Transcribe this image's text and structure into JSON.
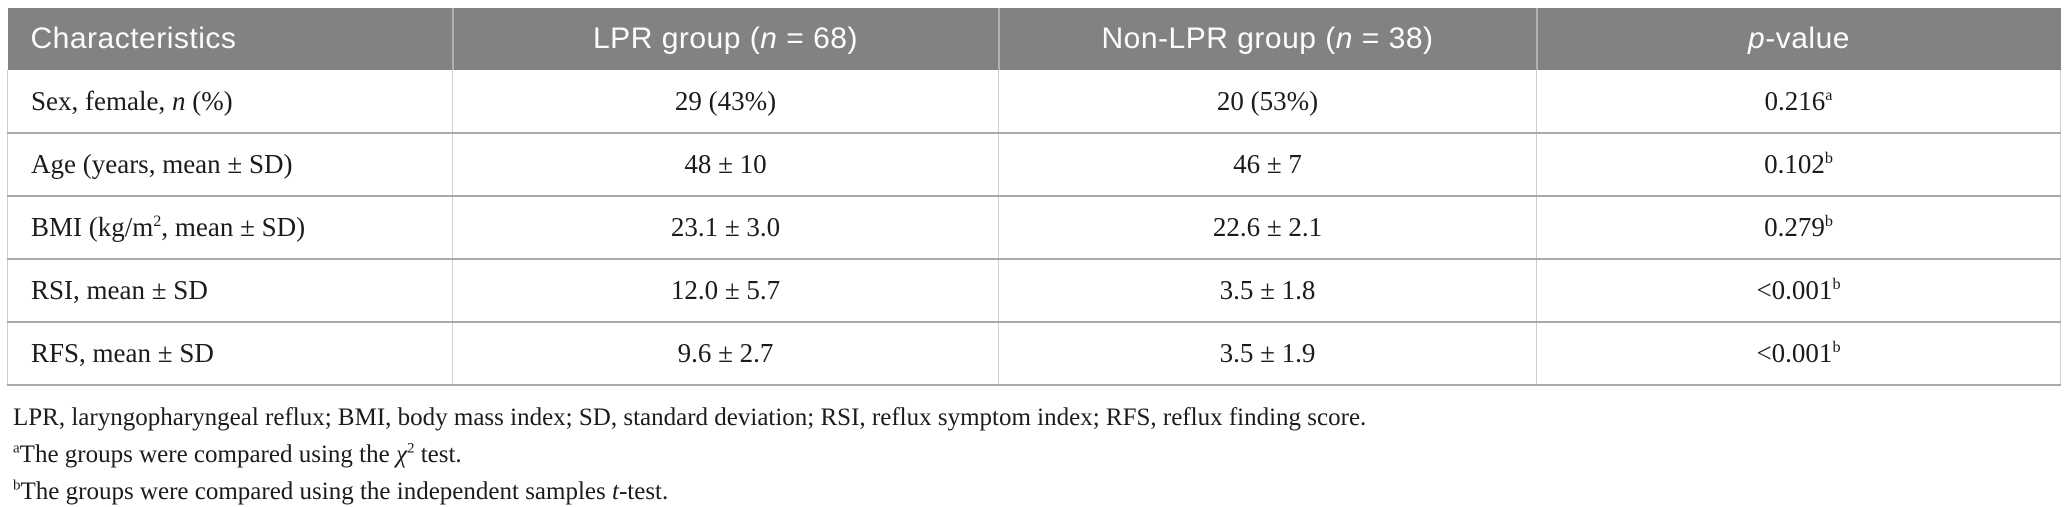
{
  "table": {
    "header": {
      "characteristics": "Characteristics",
      "lpr_group": "LPR group (<i>n</i> = 68)",
      "non_lpr_group": "Non-LPR group (<i>n</i> = 38)",
      "p_value": "<i>p</i>-value"
    },
    "rows": [
      {
        "characteristic": "Sex, female, <i>n</i> (%)",
        "lpr_group": "29 (43%)",
        "non_lpr_group": "20 (53%)",
        "p_value": "0.216<sup>a</sup>"
      },
      {
        "characteristic": "Age (years, mean ± SD)",
        "lpr_group": "48 ± 10",
        "non_lpr_group": "46 ± 7",
        "p_value": "0.102<sup>b</sup>"
      },
      {
        "characteristic": "BMI (kg/m<sup>2</sup>, mean ± SD)",
        "lpr_group": "23.1 ± 3.0",
        "non_lpr_group": "22.6 ± 2.1",
        "p_value": "0.279<sup>b</sup>"
      },
      {
        "characteristic": "RSI, mean ± SD",
        "lpr_group": "12.0 ± 5.7",
        "non_lpr_group": "3.5 ± 1.8",
        "p_value": "&lt;0.001<sup>b</sup>"
      },
      {
        "characteristic": "RFS, mean ± SD",
        "lpr_group": "9.6 ± 2.7",
        "non_lpr_group": "3.5 ± 1.9",
        "p_value": "&lt;0.001<sup>b</sup>"
      }
    ]
  },
  "footnotes": {
    "abbreviations": "LPR, laryngopharyngeal reflux; BMI, body mass index; SD, standard deviation; RSI, reflux symptom index; RFS, reflux finding score.",
    "note_a": "<sup>a</sup>The groups were compared using the <i>χ</i><sup>2</sup> test.",
    "note_b": "<sup>b</sup>The groups were compared using the independent samples <i>t</i>-test."
  },
  "colors": {
    "header_background": "#828282",
    "header_text": "#fcfcfc",
    "row_border": "#a9a9a9",
    "column_border": "#cfcfcf",
    "body_text": "#1b1b1b"
  }
}
